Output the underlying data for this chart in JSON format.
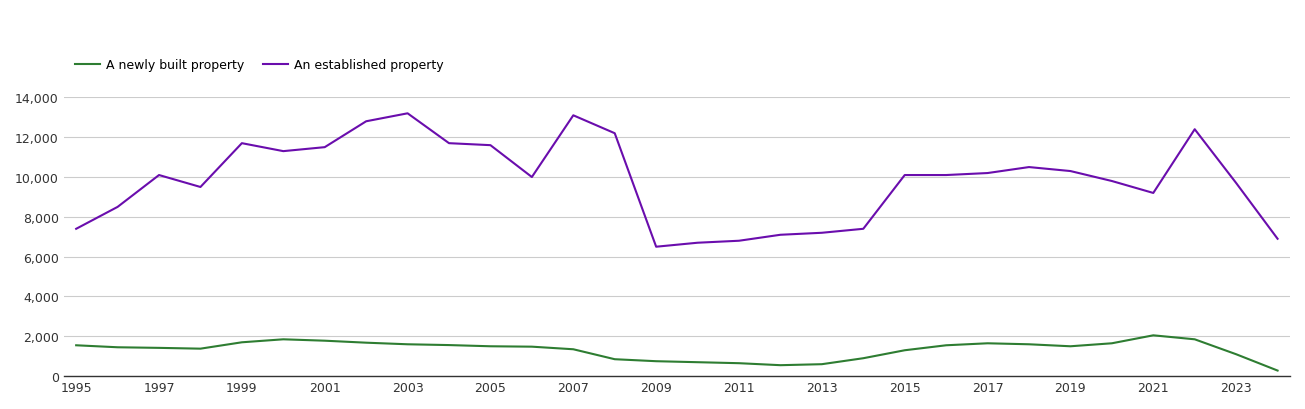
{
  "years": [
    1995,
    1996,
    1997,
    1998,
    1999,
    2000,
    2001,
    2002,
    2003,
    2004,
    2005,
    2006,
    2007,
    2008,
    2009,
    2010,
    2011,
    2012,
    2013,
    2014,
    2015,
    2016,
    2017,
    2018,
    2019,
    2020,
    2021,
    2022,
    2023,
    2024
  ],
  "new_homes": [
    1550,
    1450,
    1420,
    1380,
    1700,
    1850,
    1780,
    1680,
    1600,
    1560,
    1500,
    1480,
    1350,
    850,
    750,
    700,
    650,
    550,
    600,
    900,
    1300,
    1550,
    1650,
    1600,
    1500,
    1650,
    2050,
    1850,
    1100,
    280
  ],
  "established_homes": [
    7400,
    8500,
    10100,
    9500,
    11700,
    11300,
    11500,
    12800,
    13200,
    11700,
    11600,
    10000,
    13100,
    12200,
    6500,
    6700,
    6800,
    7100,
    7200,
    7400,
    10100,
    10100,
    10200,
    10500,
    10300,
    9800,
    9200,
    12400,
    9700,
    6900
  ],
  "new_color": "#2e7d32",
  "est_color": "#6a0dad",
  "legend_new": "A newly built property",
  "legend_est": "An established property",
  "ylim": [
    0,
    14000
  ],
  "yticks": [
    0,
    2000,
    4000,
    6000,
    8000,
    10000,
    12000,
    14000
  ],
  "xtick_labels": [
    "1995",
    "1997",
    "1999",
    "2001",
    "2003",
    "2005",
    "2007",
    "2009",
    "2011",
    "2013",
    "2015",
    "2017",
    "2019",
    "2021",
    "2023"
  ],
  "xtick_years": [
    1995,
    1997,
    1999,
    2001,
    2003,
    2005,
    2007,
    2009,
    2011,
    2013,
    2015,
    2017,
    2019,
    2021,
    2023
  ],
  "bg_color": "#ffffff",
  "grid_color": "#cccccc",
  "linewidth": 1.5
}
